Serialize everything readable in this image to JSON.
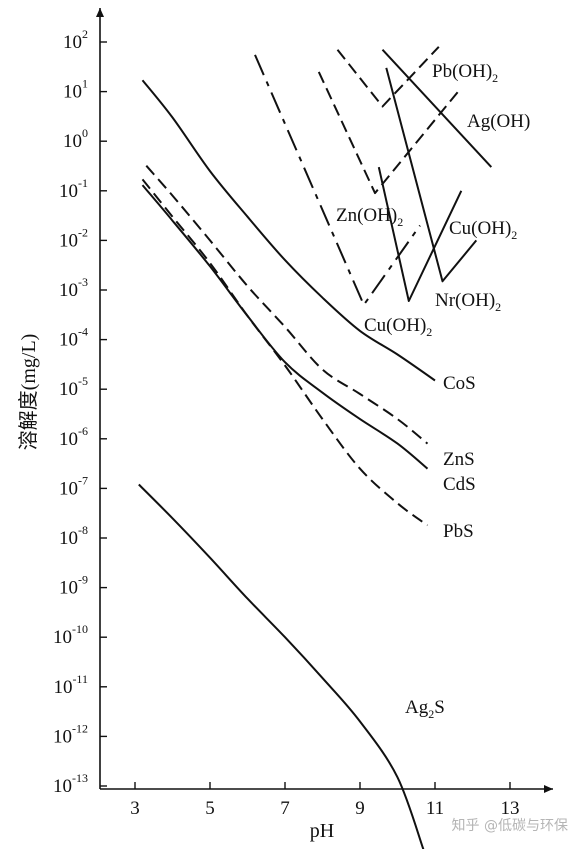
{
  "chart_data": {
    "type": "line",
    "title": "",
    "xlabel": "pH",
    "ylabel": "溶解度(mg/L)",
    "y_scale": "log",
    "xlim": [
      1.1,
      14
    ],
    "ylim": [
      1e-13,
      1000
    ],
    "x_ticks": [
      3,
      5,
      7,
      9,
      11,
      13
    ],
    "y_ticks": [
      {
        "base": "10",
        "exp": "2"
      },
      {
        "base": "10",
        "exp": "1"
      },
      {
        "base": "10",
        "exp": "0"
      },
      {
        "base": "10",
        "exp": "-1"
      },
      {
        "base": "10",
        "exp": "-2"
      },
      {
        "base": "10",
        "exp": "-3"
      },
      {
        "base": "10",
        "exp": "-4"
      },
      {
        "base": "10",
        "exp": "-5"
      },
      {
        "base": "10",
        "exp": "-6"
      },
      {
        "base": "10",
        "exp": "-7"
      },
      {
        "base": "10",
        "exp": "-8"
      },
      {
        "base": "10",
        "exp": "-9"
      },
      {
        "base": "10",
        "exp": "-10"
      },
      {
        "base": "10",
        "exp": "-11"
      },
      {
        "base": "10",
        "exp": "-12"
      },
      {
        "base": "10",
        "exp": "-13"
      }
    ],
    "grid": false,
    "legend": "none",
    "series": [
      {
        "key": "cos",
        "style": "solid",
        "label": {
          "base": "CoS",
          "sub": ""
        },
        "points": [
          [
            3.2,
            17
          ],
          [
            4.0,
            3
          ],
          [
            5.0,
            0.25
          ],
          [
            6.0,
            0.03
          ],
          [
            7.0,
            0.004
          ],
          [
            8.0,
            0.0007
          ],
          [
            9.0,
            0.00015
          ],
          [
            10.0,
            5e-05
          ],
          [
            11.0,
            1.5e-05
          ]
        ]
      },
      {
        "key": "zns",
        "style": "dashed",
        "label": {
          "base": "ZnS",
          "sub": ""
        },
        "points": [
          [
            3.3,
            0.32
          ],
          [
            4.0,
            0.08
          ],
          [
            5.0,
            0.01
          ],
          [
            6.0,
            0.0012
          ],
          [
            7.0,
            0.00018
          ],
          [
            8.0,
            2.5e-05
          ],
          [
            9.0,
            8e-06
          ],
          [
            10.0,
            2.5e-06
          ],
          [
            10.8,
            8e-07
          ]
        ]
      },
      {
        "key": "cds",
        "style": "solid",
        "label": {
          "base": "CdS",
          "sub": ""
        },
        "points": [
          [
            3.2,
            0.13
          ],
          [
            4.0,
            0.025
          ],
          [
            5.0,
            0.003
          ],
          [
            6.0,
            0.0003
          ],
          [
            7.0,
            3.5e-05
          ],
          [
            8.0,
            8.5e-06
          ],
          [
            9.0,
            2.5e-06
          ],
          [
            10.0,
            8e-07
          ],
          [
            10.8,
            2.5e-07
          ]
        ]
      },
      {
        "key": "pbs",
        "style": "dashed",
        "label": {
          "base": "PbS",
          "sub": ""
        },
        "points": [
          [
            3.2,
            0.17
          ],
          [
            4.0,
            0.03
          ],
          [
            5.0,
            0.0035
          ],
          [
            6.0,
            0.0003
          ],
          [
            7.0,
            3e-05
          ],
          [
            8.0,
            2.5e-06
          ],
          [
            9.0,
            2.5e-07
          ],
          [
            10.0,
            5e-08
          ],
          [
            10.8,
            1.8e-08
          ]
        ]
      },
      {
        "key": "ag2s",
        "style": "solid",
        "label": {
          "base": "Ag",
          "sub": "2",
          "tail": "S"
        },
        "points": [
          [
            3.1,
            1.2e-07
          ],
          [
            4.0,
            2.5e-08
          ],
          [
            5.0,
            4e-09
          ],
          [
            6.0,
            6e-10
          ],
          [
            7.0,
            1e-10
          ],
          [
            8.0,
            1.5e-11
          ],
          [
            9.0,
            2e-12
          ],
          [
            10.0,
            1.5e-13
          ],
          [
            10.7,
            5e-15
          ]
        ]
      },
      {
        "key": "pb_oh2",
        "style": "dashed",
        "label": {
          "base": "Pb(OH)",
          "sub": "2"
        },
        "points": [
          [
            8.4,
            70
          ],
          [
            9.6,
            5
          ],
          [
            11.1,
            80
          ]
        ]
      },
      {
        "key": "ag_oh",
        "style": "solid",
        "label": {
          "base": "Ag(OH)",
          "sub": ""
        },
        "points": [
          [
            9.6,
            70
          ],
          [
            12.5,
            0.3
          ]
        ]
      },
      {
        "key": "zn_oh2",
        "style": "dashed",
        "label": {
          "base": "Zn(OH)",
          "sub": "2"
        },
        "points": [
          [
            7.9,
            25
          ],
          [
            9.4,
            0.09
          ],
          [
            11.7,
            12
          ]
        ]
      },
      {
        "key": "cu_oh2_a",
        "style": "dashdot",
        "label": {
          "base": "Cu(OH)",
          "sub": "2"
        },
        "points": [
          [
            6.2,
            55
          ],
          [
            9.1,
            0.0005
          ],
          [
            10.6,
            0.02
          ]
        ]
      },
      {
        "key": "cu_oh2_b",
        "style": "solid",
        "label": {
          "base": "Cu(OH)",
          "sub": "2"
        },
        "points": [
          [
            9.5,
            0.3
          ],
          [
            10.3,
            0.0006
          ],
          [
            11.7,
            0.1
          ]
        ]
      },
      {
        "key": "ni_oh2",
        "style": "solid",
        "label": {
          "base": "Nr(OH)",
          "sub": "2"
        },
        "points": [
          [
            9.7,
            30
          ],
          [
            11.2,
            0.0015
          ],
          [
            12.1,
            0.01
          ]
        ]
      }
    ]
  },
  "watermark": "知乎 @低碳与环保"
}
